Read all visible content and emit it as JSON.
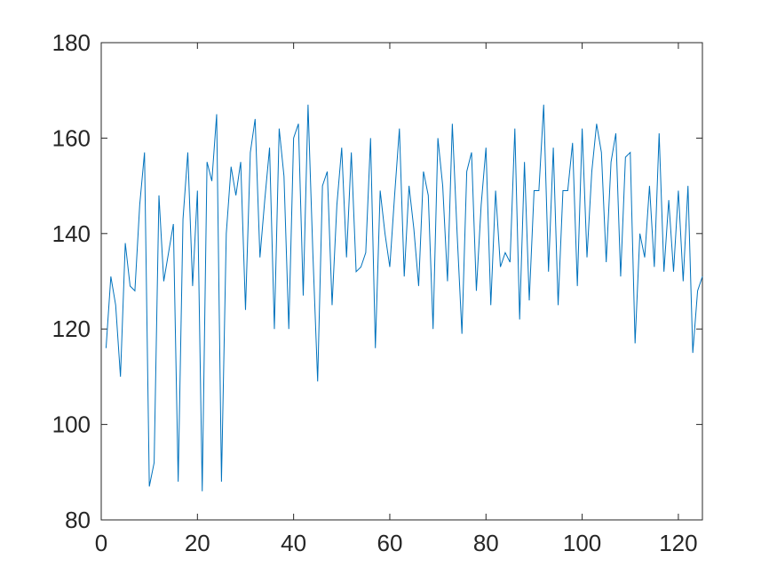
{
  "chart_data": {
    "type": "line",
    "color": "#0072bd",
    "grid": false,
    "xlim": [
      0,
      125
    ],
    "ylim": [
      80,
      180
    ],
    "xticks": [
      0,
      20,
      40,
      60,
      80,
      100,
      120
    ],
    "yticks": [
      80,
      100,
      120,
      140,
      160,
      180
    ],
    "x": [
      1,
      2,
      3,
      4,
      5,
      6,
      7,
      8,
      9,
      10,
      11,
      12,
      13,
      14,
      15,
      16,
      17,
      18,
      19,
      20,
      21,
      22,
      23,
      24,
      25,
      26,
      27,
      28,
      29,
      30,
      31,
      32,
      33,
      34,
      35,
      36,
      37,
      38,
      39,
      40,
      41,
      42,
      43,
      44,
      45,
      46,
      47,
      48,
      49,
      50,
      51,
      52,
      53,
      54,
      55,
      56,
      57,
      58,
      59,
      60,
      61,
      62,
      63,
      64,
      65,
      66,
      67,
      68,
      69,
      70,
      71,
      72,
      73,
      74,
      75,
      76,
      77,
      78,
      79,
      80,
      81,
      82,
      83,
      84,
      85,
      86,
      87,
      88,
      89,
      90,
      91,
      92,
      93,
      94,
      95,
      96,
      97,
      98,
      99,
      100,
      101,
      102,
      103,
      104,
      105,
      106,
      107,
      108,
      109,
      110,
      111,
      112,
      113,
      114,
      115,
      116,
      117,
      118,
      119,
      120,
      121,
      122,
      123,
      124,
      125
    ],
    "values": [
      116,
      131,
      125,
      110,
      138,
      129,
      128,
      146,
      157,
      87,
      92,
      148,
      130,
      136,
      142,
      88,
      143,
      157,
      129,
      149,
      86,
      155,
      151,
      165,
      88,
      140,
      154,
      148,
      155,
      124,
      157,
      164,
      135,
      147,
      158,
      120,
      162,
      152,
      120,
      160,
      163,
      127,
      167,
      136,
      109,
      150,
      153,
      125,
      146,
      158,
      135,
      157,
      132,
      133,
      136,
      160,
      116,
      149,
      140,
      133,
      148,
      162,
      131,
      150,
      141,
      129,
      153,
      148,
      120,
      160,
      150,
      130,
      163,
      140,
      119,
      153,
      157,
      128,
      146,
      158,
      125,
      149,
      133,
      136,
      134,
      162,
      122,
      155,
      126,
      149,
      149,
      167,
      132,
      158,
      125,
      149,
      149,
      159,
      129,
      162,
      135,
      153,
      163,
      157,
      134,
      155,
      161,
      131,
      156,
      157,
      117,
      140,
      135,
      150,
      133,
      161,
      132,
      147,
      132,
      149,
      130,
      150,
      115,
      128,
      131
    ]
  }
}
